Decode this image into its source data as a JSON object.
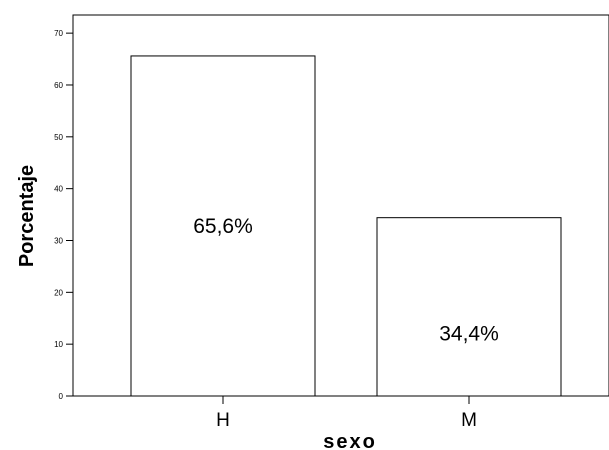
{
  "chart_data": {
    "type": "bar",
    "title": "",
    "xlabel": "sexo",
    "ylabel": "Porcentaje",
    "categories": [
      "H",
      "M"
    ],
    "values": [
      65.6,
      34.4
    ],
    "data_labels": [
      "65,6%",
      "34,4%"
    ],
    "ylim": [
      0,
      73.5
    ],
    "yticks": [
      0,
      10,
      20,
      30,
      40,
      50,
      60,
      70
    ],
    "grid": false,
    "legend": "none",
    "colors": {
      "bar_fill": "#ffffff",
      "bar_stroke": "#000000",
      "axis": "#000000",
      "text": "#000000"
    }
  }
}
